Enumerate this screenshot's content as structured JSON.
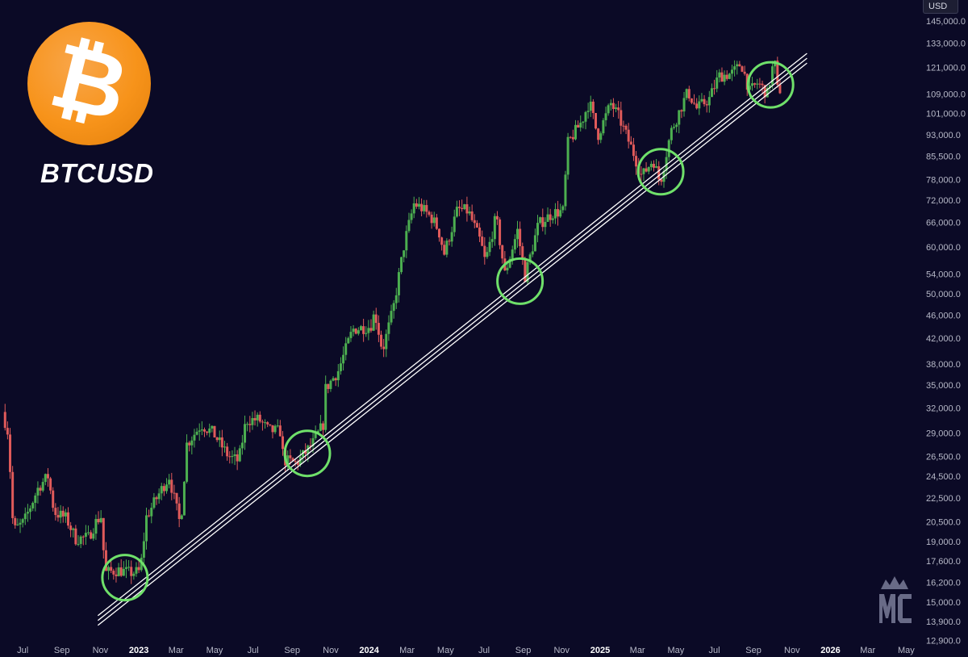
{
  "symbol": "BTCUSD",
  "logo_icon": "bitcoin-logo-icon",
  "logo_glyph": "₿",
  "currency": "USD",
  "watermark_icon": "mc-crown-logo-icon",
  "colors": {
    "background": "#0b0a26",
    "up": "#4caf50",
    "down": "#e05a5a",
    "support": "#ffffff",
    "circle": "#6fe06a",
    "logo": "#f7931a"
  },
  "chart_data": {
    "type": "candlestick",
    "title": "BTCUSD",
    "y_scale": "log",
    "y_ticks": [
      12900,
      13900,
      15000,
      16200,
      17600,
      19000,
      20500,
      22500,
      24500,
      26500,
      29000,
      32000,
      35000,
      38000,
      42000,
      46000,
      50000,
      54000,
      60000,
      66000,
      72000,
      78000,
      85500,
      93000,
      101000,
      109000,
      121000,
      133000,
      145000
    ],
    "y_tick_labels": [
      "12,900.0",
      "13,900.0",
      "15,000.0",
      "16,200.0",
      "17,600.0",
      "19,000.0",
      "20,500.0",
      "22,500.0",
      "24,500.0",
      "26,500.0",
      "29,000.0",
      "32,000.0",
      "35,000.0",
      "38,000.0",
      "42,000.0",
      "46,000.0",
      "50,000.0",
      "54,000.0",
      "60,000.0",
      "66,000.0",
      "72,000.0",
      "78,000.0",
      "85,500.0",
      "93,000.0",
      "101,000.0",
      "109,000.0",
      "121,000.0",
      "133,000.0",
      "145,000.0"
    ],
    "ylim": [
      12900,
      150000
    ],
    "x_ticks": [
      {
        "date": "2022-07-01",
        "label": "Jul",
        "year": false
      },
      {
        "date": "2022-09-01",
        "label": "Sep",
        "year": false
      },
      {
        "date": "2022-11-01",
        "label": "Nov",
        "year": false
      },
      {
        "date": "2023-01-01",
        "label": "2023",
        "year": true
      },
      {
        "date": "2023-03-01",
        "label": "Mar",
        "year": false
      },
      {
        "date": "2023-05-01",
        "label": "May",
        "year": false
      },
      {
        "date": "2023-07-01",
        "label": "Jul",
        "year": false
      },
      {
        "date": "2023-09-01",
        "label": "Sep",
        "year": false
      },
      {
        "date": "2023-11-01",
        "label": "Nov",
        "year": false
      },
      {
        "date": "2024-01-01",
        "label": "2024",
        "year": true
      },
      {
        "date": "2024-03-01",
        "label": "Mar",
        "year": false
      },
      {
        "date": "2024-05-01",
        "label": "May",
        "year": false
      },
      {
        "date": "2024-07-01",
        "label": "Jul",
        "year": false
      },
      {
        "date": "2024-09-01",
        "label": "Sep",
        "year": false
      },
      {
        "date": "2024-11-01",
        "label": "Nov",
        "year": false
      },
      {
        "date": "2025-01-01",
        "label": "2025",
        "year": true
      },
      {
        "date": "2025-03-01",
        "label": "Mar",
        "year": false
      },
      {
        "date": "2025-05-01",
        "label": "May",
        "year": false
      },
      {
        "date": "2025-07-01",
        "label": "Jul",
        "year": false
      },
      {
        "date": "2025-09-01",
        "label": "Sep",
        "year": false
      },
      {
        "date": "2025-11-01",
        "label": "Nov",
        "year": false
      },
      {
        "date": "2026-01-01",
        "label": "2026",
        "year": true
      },
      {
        "date": "2026-03-01",
        "label": "Mar",
        "year": false
      },
      {
        "date": "2026-05-01",
        "label": "May",
        "year": false
      }
    ],
    "price_path": [
      [
        "2022-06-01",
        31500
      ],
      [
        "2022-06-10",
        29000
      ],
      [
        "2022-06-18",
        19800
      ],
      [
        "2022-07-05",
        20500
      ],
      [
        "2022-07-28",
        23500
      ],
      [
        "2022-08-12",
        24500
      ],
      [
        "2022-08-22",
        21300
      ],
      [
        "2022-09-10",
        20800
      ],
      [
        "2022-09-25",
        19200
      ],
      [
        "2022-10-15",
        19300
      ],
      [
        "2022-10-28",
        20600
      ],
      [
        "2022-11-05",
        21000
      ],
      [
        "2022-11-10",
        16800
      ],
      [
        "2022-12-01",
        17000
      ],
      [
        "2022-12-20",
        16800
      ],
      [
        "2023-01-05",
        16900
      ],
      [
        "2023-01-15",
        20900
      ],
      [
        "2023-02-05",
        23000
      ],
      [
        "2023-02-20",
        24500
      ],
      [
        "2023-03-10",
        20200
      ],
      [
        "2023-03-20",
        27800
      ],
      [
        "2023-04-12",
        30000
      ],
      [
        "2023-05-01",
        29000
      ],
      [
        "2023-05-25",
        26500
      ],
      [
        "2023-06-10",
        26000
      ],
      [
        "2023-06-22",
        30500
      ],
      [
        "2023-07-12",
        30600
      ],
      [
        "2023-07-28",
        29300
      ],
      [
        "2023-08-16",
        29200
      ],
      [
        "2023-08-20",
        26100
      ],
      [
        "2023-09-10",
        25800
      ],
      [
        "2023-10-05",
        27800
      ],
      [
        "2023-10-22",
        30000
      ],
      [
        "2023-10-26",
        34500
      ],
      [
        "2023-11-15",
        37000
      ],
      [
        "2023-12-08",
        43500
      ],
      [
        "2024-01-05",
        44000
      ],
      [
        "2024-01-12",
        46500
      ],
      [
        "2024-01-24",
        40000
      ],
      [
        "2024-02-10",
        47000
      ],
      [
        "2024-02-28",
        61000
      ],
      [
        "2024-03-14",
        71000
      ],
      [
        "2024-03-25",
        70000
      ],
      [
        "2024-04-12",
        67000
      ],
      [
        "2024-04-22",
        64000
      ],
      [
        "2024-05-01",
        58500
      ],
      [
        "2024-05-22",
        69500
      ],
      [
        "2024-06-08",
        69000
      ],
      [
        "2024-06-28",
        61000
      ],
      [
        "2024-07-05",
        56500
      ],
      [
        "2024-07-22",
        67500
      ],
      [
        "2024-08-05",
        54000
      ],
      [
        "2024-08-25",
        64000
      ],
      [
        "2024-09-06",
        53500
      ],
      [
        "2024-09-27",
        65500
      ],
      [
        "2024-10-20",
        68500
      ],
      [
        "2024-11-05",
        69000
      ],
      [
        "2024-11-13",
        90000
      ],
      [
        "2024-12-05",
        98000
      ],
      [
        "2024-12-17",
        106000
      ],
      [
        "2024-12-30",
        92500
      ],
      [
        "2025-01-20",
        105000
      ],
      [
        "2025-02-01",
        100000
      ],
      [
        "2025-02-25",
        86500
      ],
      [
        "2025-03-10",
        79000
      ],
      [
        "2025-03-28",
        84500
      ],
      [
        "2025-04-08",
        77000
      ],
      [
        "2025-04-25",
        94000
      ],
      [
        "2025-05-12",
        104000
      ],
      [
        "2025-05-22",
        110000
      ],
      [
        "2025-06-05",
        103000
      ],
      [
        "2025-06-25",
        107000
      ],
      [
        "2025-07-10",
        117000
      ],
      [
        "2025-07-30",
        118000
      ],
      [
        "2025-08-10",
        121000
      ],
      [
        "2025-08-14",
        123500
      ],
      [
        "2025-08-28",
        110000
      ],
      [
        "2025-09-10",
        114000
      ],
      [
        "2025-09-25",
        109000
      ],
      [
        "2025-10-06",
        125000
      ],
      [
        "2025-10-11",
        111000
      ]
    ],
    "support_line": {
      "start": [
        "2022-11-15",
        14400
      ],
      "end": [
        "2025-10-20",
        117000
      ],
      "lines": 3
    },
    "highlight_circles": [
      {
        "date": "2022-12-10",
        "price": 16500
      },
      {
        "date": "2023-09-25",
        "price": 26800
      },
      {
        "date": "2024-08-27",
        "price": 52500
      },
      {
        "date": "2025-04-07",
        "price": 80500
      },
      {
        "date": "2025-09-28",
        "price": 113000
      }
    ]
  }
}
